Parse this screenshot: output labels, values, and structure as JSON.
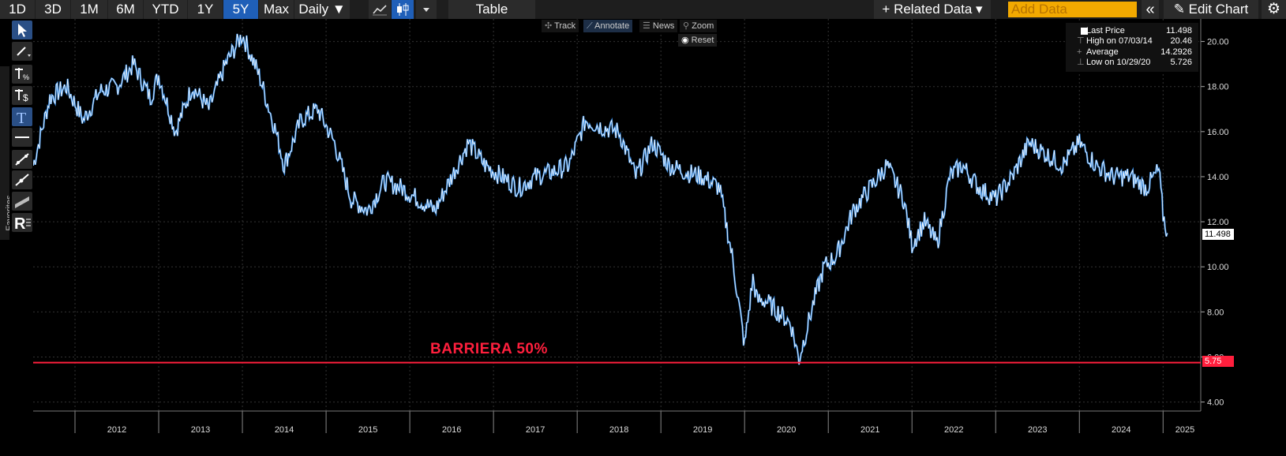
{
  "toolbar": {
    "ranges": [
      "1D",
      "3D",
      "1M",
      "6M",
      "YTD",
      "1Y",
      "5Y",
      "Max"
    ],
    "active_range": "5Y",
    "frequency": "Daily ▼",
    "table_label": "Table",
    "related_data": "+ Related Data ▾",
    "add_data_placeholder": "Add Data",
    "collapse": "«",
    "edit_chart": "✎ Edit Chart",
    "settings": "⚙",
    "icons": [
      "line-chart-icon",
      "candlestick-icon",
      "dropdown-caret-icon"
    ]
  },
  "left_tools": {
    "favorites_label": "Favorites",
    "tools": [
      "pointer-icon",
      "pen-icon",
      "percent-measure-icon",
      "price-measure-icon",
      "text-icon",
      "horizontal-line-icon",
      "trend-line-icon",
      "ray-line-icon",
      "channel-icon",
      "r-tool-icon"
    ]
  },
  "overlay": {
    "track": "Track",
    "annotate": "Annotate",
    "news": "News",
    "zoom": "Zoom",
    "reset": "Reset"
  },
  "legend": {
    "rows": [
      {
        "label": "Last Price",
        "value": "11.498"
      },
      {
        "label": "High on 07/03/14",
        "value": "20.46"
      },
      {
        "label": "Average",
        "value": "14.2926"
      },
      {
        "label": "Low on 10/29/20",
        "value": "5.726"
      }
    ]
  },
  "price_tags": {
    "last": "11.498",
    "barrier": "5.75"
  },
  "annotation": {
    "barrier_text": "BARRIERA 50%"
  },
  "colors": {
    "series_primary": "#ffffff",
    "series_secondary": "#2f86e0",
    "barrier_line": "#ff1f3d",
    "accent_blue": "#1f5fb8",
    "add_data": "#f2a900"
  },
  "chart_data": {
    "type": "line",
    "title": "",
    "xlabel": "",
    "ylabel": "",
    "x_ticks": [
      "2012",
      "2013",
      "2014",
      "2015",
      "2016",
      "2017",
      "2018",
      "2019",
      "2020",
      "2021",
      "2022",
      "2023",
      "2024",
      "2025"
    ],
    "y_ticks": [
      "4.00",
      "6.00",
      "8.00",
      "10.00",
      "12.00",
      "14.00",
      "16.00",
      "18.00",
      "20.00"
    ],
    "ylim": [
      3.6,
      21.0
    ],
    "xlim": [
      2011.5,
      2025.45
    ],
    "grid": true,
    "series": [
      {
        "x": [
          2011.5,
          2011.7,
          2011.9,
          2012.1,
          2012.3,
          2012.5,
          2012.7,
          2012.9,
          2013.0,
          2013.2,
          2013.4,
          2013.6,
          2013.8,
          2014.0,
          2014.2,
          2014.4,
          2014.5,
          2014.7,
          2014.9,
          2015.1,
          2015.3,
          2015.5,
          2015.7,
          2015.9,
          2016.1,
          2016.3,
          2016.5,
          2016.7,
          2016.9,
          2017.1,
          2017.3,
          2017.5,
          2017.7,
          2017.9,
          2018.1,
          2018.3,
          2018.5,
          2018.7,
          2018.9,
          2019.1,
          2019.3,
          2019.5,
          2019.7,
          2019.85,
          2020.0,
          2020.1,
          2020.15,
          2020.25,
          2020.4,
          2020.55,
          2020.65,
          2020.83,
          2020.95,
          2021.1,
          2021.3,
          2021.5,
          2021.7,
          2021.9,
          2022.0,
          2022.15,
          2022.3,
          2022.45,
          2022.6,
          2022.8,
          2023.0,
          2023.2,
          2023.4,
          2023.6,
          2023.8,
          2024.0,
          2024.2,
          2024.4,
          2024.6,
          2024.8,
          2024.95,
          2025.0,
          2025.05
        ],
        "y": [
          14.5,
          17.5,
          18.0,
          16.5,
          17.8,
          18.0,
          19.0,
          17.5,
          18.5,
          16.0,
          18.0,
          17.0,
          19.0,
          20.3,
          18.5,
          16.0,
          14.5,
          16.5,
          17.0,
          15.5,
          13.0,
          12.5,
          13.8,
          13.5,
          13.0,
          12.5,
          14.0,
          15.5,
          14.5,
          14.0,
          13.5,
          14.0,
          14.2,
          14.5,
          16.5,
          16.2,
          16.0,
          14.0,
          15.5,
          14.5,
          14.2,
          14.0,
          13.5,
          10.5,
          6.5,
          9.5,
          8.5,
          8.5,
          8.0,
          7.5,
          5.9,
          8.5,
          10.0,
          10.5,
          12.5,
          13.5,
          14.5,
          13.0,
          11.0,
          12.0,
          11.0,
          14.0,
          14.5,
          13.5,
          13.0,
          14.0,
          15.5,
          15.0,
          14.5,
          15.5,
          14.5,
          14.0,
          14.0,
          13.5,
          14.3,
          12.3,
          11.5
        ]
      }
    ],
    "reference_lines": [
      {
        "y": 5.75,
        "label": "BARRIERA 50%"
      }
    ]
  }
}
